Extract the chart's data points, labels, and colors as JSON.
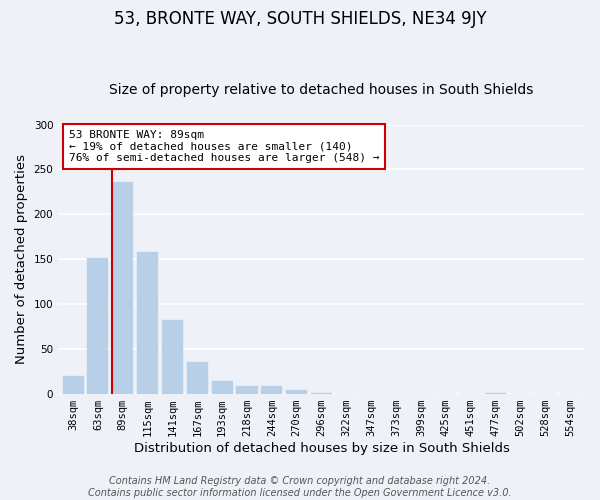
{
  "title": "53, BRONTE WAY, SOUTH SHIELDS, NE34 9JY",
  "subtitle": "Size of property relative to detached houses in South Shields",
  "xlabel": "Distribution of detached houses by size in South Shields",
  "ylabel": "Number of detached properties",
  "bar_labels": [
    "38sqm",
    "63sqm",
    "89sqm",
    "115sqm",
    "141sqm",
    "167sqm",
    "193sqm",
    "218sqm",
    "244sqm",
    "270sqm",
    "296sqm",
    "322sqm",
    "347sqm",
    "373sqm",
    "399sqm",
    "425sqm",
    "451sqm",
    "477sqm",
    "502sqm",
    "528sqm",
    "554sqm"
  ],
  "bar_values": [
    20,
    152,
    236,
    158,
    82,
    36,
    15,
    9,
    9,
    4,
    1,
    0,
    0,
    0,
    0,
    0,
    0,
    1,
    0,
    0,
    0
  ],
  "bar_color": "#b8cfe8",
  "vline_index": 2,
  "vline_color": "#cc0000",
  "ylim": [
    0,
    300
  ],
  "yticks": [
    0,
    50,
    100,
    150,
    200,
    250,
    300
  ],
  "annotation_title": "53 BRONTE WAY: 89sqm",
  "annotation_line1": "← 19% of detached houses are smaller (140)",
  "annotation_line2": "76% of semi-detached houses are larger (548) →",
  "annotation_box_color": "#ffffff",
  "annotation_box_edge": "#cc0000",
  "footer1": "Contains HM Land Registry data © Crown copyright and database right 2024.",
  "footer2": "Contains public sector information licensed under the Open Government Licence v3.0.",
  "background_color": "#eef2f8",
  "grid_color": "#ffffff",
  "title_fontsize": 12,
  "subtitle_fontsize": 10,
  "axis_label_fontsize": 9.5,
  "tick_fontsize": 7.5,
  "annotation_fontsize": 8,
  "footer_fontsize": 7
}
